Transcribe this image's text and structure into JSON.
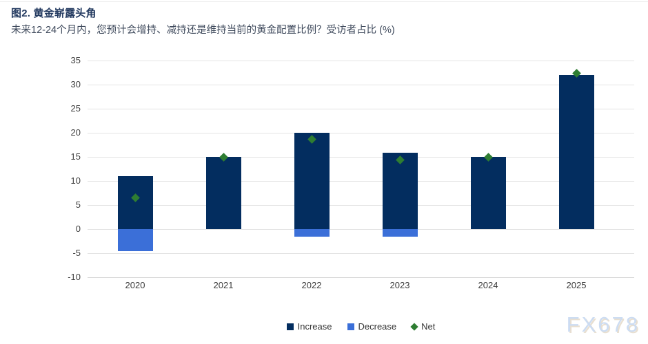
{
  "header": {
    "title": "图2. 黄金崭露头角",
    "subtitle": "未来12-24个月内，您预计会增持、减持还是维持当前的黄金配置比例？受访者占比 (%)"
  },
  "chart_data": {
    "type": "bar",
    "title": "图2. 黄金崭露头角",
    "subtitle": "未来12-24个月内，您预计会增持、减持还是维持当前的黄金配置比例？受访者占比 (%)",
    "categories": [
      "2020",
      "2021",
      "2022",
      "2023",
      "2024",
      "2025"
    ],
    "series": [
      {
        "name": "Increase",
        "type": "bar",
        "color": "#032d5f",
        "values": [
          11,
          15,
          20,
          15.8,
          15,
          32
        ]
      },
      {
        "name": "Decrease",
        "type": "bar",
        "color": "#3b6fd8",
        "values": [
          -4.5,
          0,
          -1.5,
          -1.5,
          0,
          0
        ]
      },
      {
        "name": "Net",
        "type": "scatter",
        "marker": "diamond",
        "color": "#2e7d32",
        "values": [
          6.5,
          15,
          18.7,
          14.3,
          15,
          32.3
        ]
      }
    ],
    "ylim": [
      -10,
      35
    ],
    "yticks": [
      35,
      30,
      25,
      20,
      15,
      10,
      5,
      0,
      -5,
      -10
    ],
    "xlabel": "",
    "ylabel": "",
    "grid": true,
    "legend_position": "bottom-center"
  },
  "watermark": {
    "text": "FX678"
  }
}
